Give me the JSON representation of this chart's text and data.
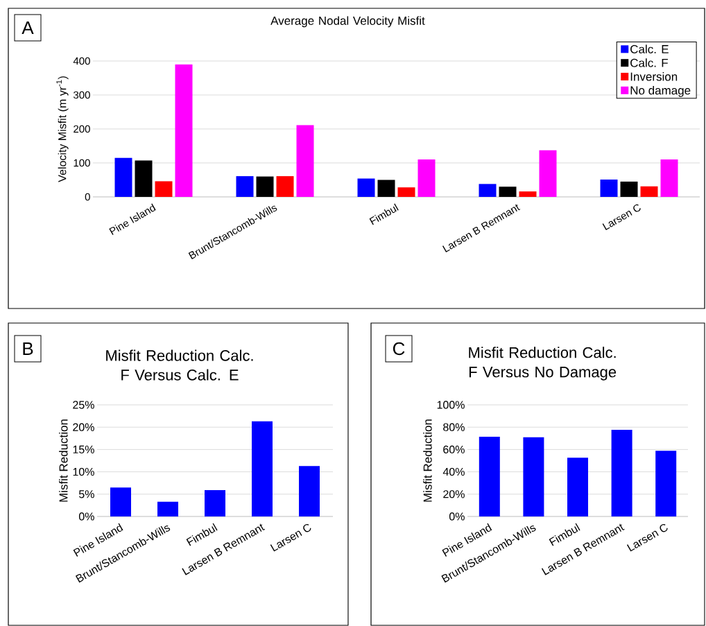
{
  "chart_data": [
    {
      "type": "bar",
      "title": "Average Nodal Velocity Misfit",
      "ylabel": "Velocity Misfit (m yr$^{-1}$)",
      "annotations": [
        "A"
      ],
      "categories": [
        "Pine Island",
        "Brunt/Stancomb-Wills",
        "Fimbul",
        "Larsen B Remnant",
        "Larsen C"
      ],
      "series": [
        {
          "name": "Calc. E",
          "color": "#0000ff",
          "values": [
            115,
            61,
            54,
            38,
            51
          ]
        },
        {
          "name": "Calc. F",
          "color": "#000000",
          "values": [
            107,
            60,
            50,
            30,
            45
          ]
        },
        {
          "name": "Inversion",
          "color": "#ff0000",
          "values": [
            46,
            61,
            28,
            16,
            31
          ]
        },
        {
          "name": "No damage",
          "color": "#ff00ff",
          "values": [
            390,
            211,
            110,
            137,
            110
          ]
        }
      ],
      "ylim": [
        0,
        400
      ],
      "yticks": [
        0,
        100,
        200,
        300,
        400
      ],
      "grid": "y",
      "legend": "top right"
    },
    {
      "type": "bar",
      "title": "Misfit Reduction Calc. F Versus Calc. E",
      "ylabel": "Misfit Reduction",
      "annotations": [
        "B"
      ],
      "categories": [
        "Pine Island",
        "Brunt/Stancomb-Wills",
        "Fimbul",
        "Larsen B Remnant",
        "Larsen C"
      ],
      "values": [
        6.5,
        3.3,
        5.9,
        21.3,
        11.3
      ],
      "color": "#0000ff",
      "ylim": [
        0,
        25
      ],
      "yticks": [
        {
          "value": 0,
          "label": "0%"
        },
        {
          "value": 5,
          "label": "5%"
        },
        {
          "value": 10,
          "label": "10%"
        },
        {
          "value": 15,
          "label": "15%"
        },
        {
          "value": 20,
          "label": "20%"
        },
        {
          "value": 25,
          "label": "25%"
        }
      ],
      "grid": "y"
    },
    {
      "type": "bar",
      "title": "Misfit Reduction Calc. F Versus No Damage",
      "ylabel": "Misfit Reduction",
      "annotations": [
        "C"
      ],
      "categories": [
        "Pine Island",
        "Brunt/Stancomb-Wills",
        "Fimbul",
        "Larsen B Remnant",
        "Larsen C"
      ],
      "values": [
        71.5,
        70.9,
        52.7,
        77.6,
        58.8
      ],
      "color": "#0000ff",
      "ylim": [
        0,
        100
      ],
      "yticks": [
        {
          "value": 0,
          "label": "0%"
        },
        {
          "value": 20,
          "label": "20%"
        },
        {
          "value": 40,
          "label": "40%"
        },
        {
          "value": 60,
          "label": "60%"
        },
        {
          "value": 80,
          "label": "80%"
        },
        {
          "value": 100,
          "label": "100%"
        }
      ],
      "grid": "y"
    }
  ]
}
